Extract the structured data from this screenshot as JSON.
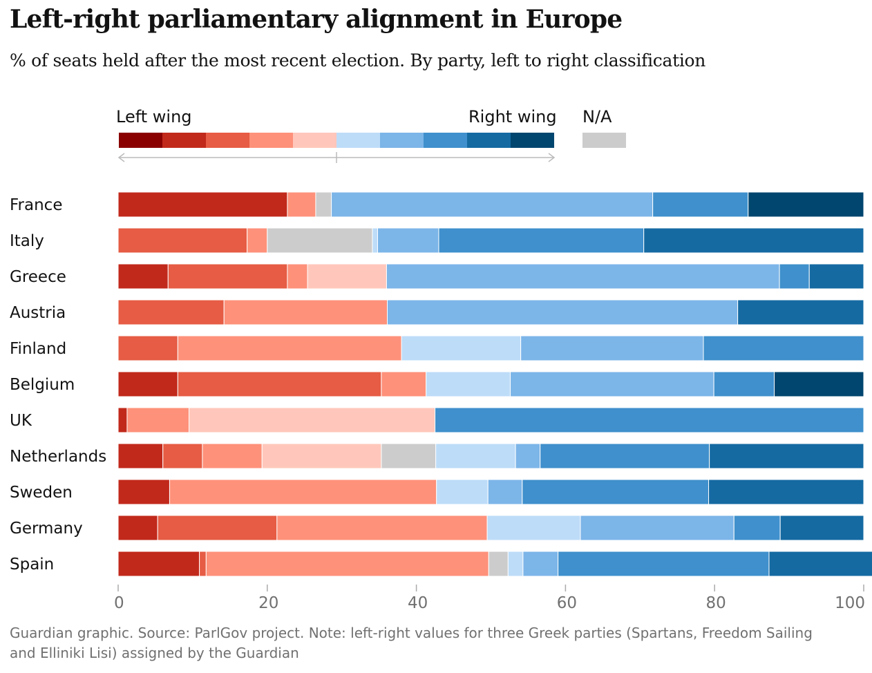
{
  "title": "Left-right parliamentary alignment in Europe",
  "subtitle": "% of seats held after the most recent election. By party, left to right classification",
  "legend": {
    "left_label": "Left wing",
    "right_label": "Right wing",
    "na_label": "N/A",
    "scale_colors": [
      "#8a0000",
      "#c1291b",
      "#e65c44",
      "#fe917a",
      "#ffc7bb",
      "#bddcf8",
      "#7cb5e8",
      "#3f90cc",
      "#156aa2",
      "#00466f"
    ],
    "na_color": "#cccccc"
  },
  "footnote": "Guardian graphic. Source: ParlGov project. Note: left-right values for three Greek parties (Spartans, Freedom Sailing and Elliniki Lisi) assigned by the Guardian",
  "chart_data": {
    "type": "bar",
    "orientation": "horizontal",
    "stacked": true,
    "title": "Left-right parliamentary alignment in Europe",
    "xlim": [
      0,
      100
    ],
    "xticks": [
      0,
      20,
      40,
      60,
      80,
      100
    ],
    "grid": false,
    "legend_position": "top",
    "categories": [
      "France",
      "Italy",
      "Greece",
      "Austria",
      "Finland",
      "Belgium",
      "UK",
      "Netherlands",
      "Sweden",
      "Germany",
      "Spain"
    ],
    "bars": [
      {
        "country": "France",
        "segments": [
          {
            "value": 22.7,
            "class": 1
          },
          {
            "value": 3.8,
            "class": 3
          },
          {
            "value": 2.1,
            "class": "na"
          },
          {
            "value": 43.1,
            "class": 6
          },
          {
            "value": 12.8,
            "class": 7
          },
          {
            "value": 15.5,
            "class": 9
          }
        ]
      },
      {
        "country": "Italy",
        "segments": [
          {
            "value": 17.3,
            "class": 2
          },
          {
            "value": 2.7,
            "class": 3
          },
          {
            "value": 14.1,
            "class": "na"
          },
          {
            "value": 0.7,
            "class": 5
          },
          {
            "value": 8.2,
            "class": 6
          },
          {
            "value": 27.5,
            "class": 7
          },
          {
            "value": 29.5,
            "class": 8
          }
        ]
      },
      {
        "country": "Greece",
        "segments": [
          {
            "value": 6.7,
            "class": 1
          },
          {
            "value": 16.0,
            "class": 2
          },
          {
            "value": 2.7,
            "class": 3
          },
          {
            "value": 10.6,
            "class": 4
          },
          {
            "value": 52.7,
            "class": 6
          },
          {
            "value": 4.0,
            "class": 7
          },
          {
            "value": 7.3,
            "class": 8
          }
        ]
      },
      {
        "country": "Austria",
        "segments": [
          {
            "value": 14.2,
            "class": 2
          },
          {
            "value": 21.9,
            "class": 3
          },
          {
            "value": 47.0,
            "class": 6
          },
          {
            "value": 16.9,
            "class": 8
          }
        ]
      },
      {
        "country": "Finland",
        "segments": [
          {
            "value": 8.0,
            "class": 2
          },
          {
            "value": 30.0,
            "class": 3
          },
          {
            "value": 16.0,
            "class": 5
          },
          {
            "value": 24.5,
            "class": 6
          },
          {
            "value": 21.5,
            "class": 7
          }
        ]
      },
      {
        "country": "Belgium",
        "segments": [
          {
            "value": 8.0,
            "class": 1
          },
          {
            "value": 27.3,
            "class": 2
          },
          {
            "value": 6.0,
            "class": 3
          },
          {
            "value": 11.3,
            "class": 5
          },
          {
            "value": 27.3,
            "class": 6
          },
          {
            "value": 8.1,
            "class": 7
          },
          {
            "value": 12.0,
            "class": 9
          }
        ]
      },
      {
        "country": "UK",
        "segments": [
          {
            "value": 1.2,
            "class": 1
          },
          {
            "value": 8.3,
            "class": 3
          },
          {
            "value": 33.0,
            "class": 4
          },
          {
            "value": 57.5,
            "class": 7
          }
        ]
      },
      {
        "country": "Netherlands",
        "segments": [
          {
            "value": 6.0,
            "class": 1
          },
          {
            "value": 5.3,
            "class": 2
          },
          {
            "value": 8.0,
            "class": 3
          },
          {
            "value": 16.0,
            "class": 4
          },
          {
            "value": 7.3,
            "class": "na"
          },
          {
            "value": 10.7,
            "class": 5
          },
          {
            "value": 3.3,
            "class": 6
          },
          {
            "value": 22.7,
            "class": 7
          },
          {
            "value": 20.7,
            "class": 8
          }
        ]
      },
      {
        "country": "Sweden",
        "segments": [
          {
            "value": 6.9,
            "class": 1
          },
          {
            "value": 35.8,
            "class": 3
          },
          {
            "value": 6.9,
            "class": 5
          },
          {
            "value": 4.6,
            "class": 6
          },
          {
            "value": 25.0,
            "class": 7
          },
          {
            "value": 20.8,
            "class": 8
          }
        ]
      },
      {
        "country": "Germany",
        "segments": [
          {
            "value": 5.3,
            "class": 1
          },
          {
            "value": 16.0,
            "class": 2
          },
          {
            "value": 28.2,
            "class": 3
          },
          {
            "value": 12.5,
            "class": 5
          },
          {
            "value": 20.6,
            "class": 6
          },
          {
            "value": 6.2,
            "class": 7
          },
          {
            "value": 11.2,
            "class": 8
          }
        ]
      },
      {
        "country": "Spain",
        "segments": [
          {
            "value": 10.9,
            "class": 1
          },
          {
            "value": 0.9,
            "class": 2
          },
          {
            "value": 37.9,
            "class": 3
          },
          {
            "value": 2.6,
            "class": "na"
          },
          {
            "value": 2.0,
            "class": 5
          },
          {
            "value": 4.7,
            "class": 6
          },
          {
            "value": 28.3,
            "class": 7
          },
          {
            "value": 14.9,
            "class": 8
          }
        ]
      }
    ]
  }
}
